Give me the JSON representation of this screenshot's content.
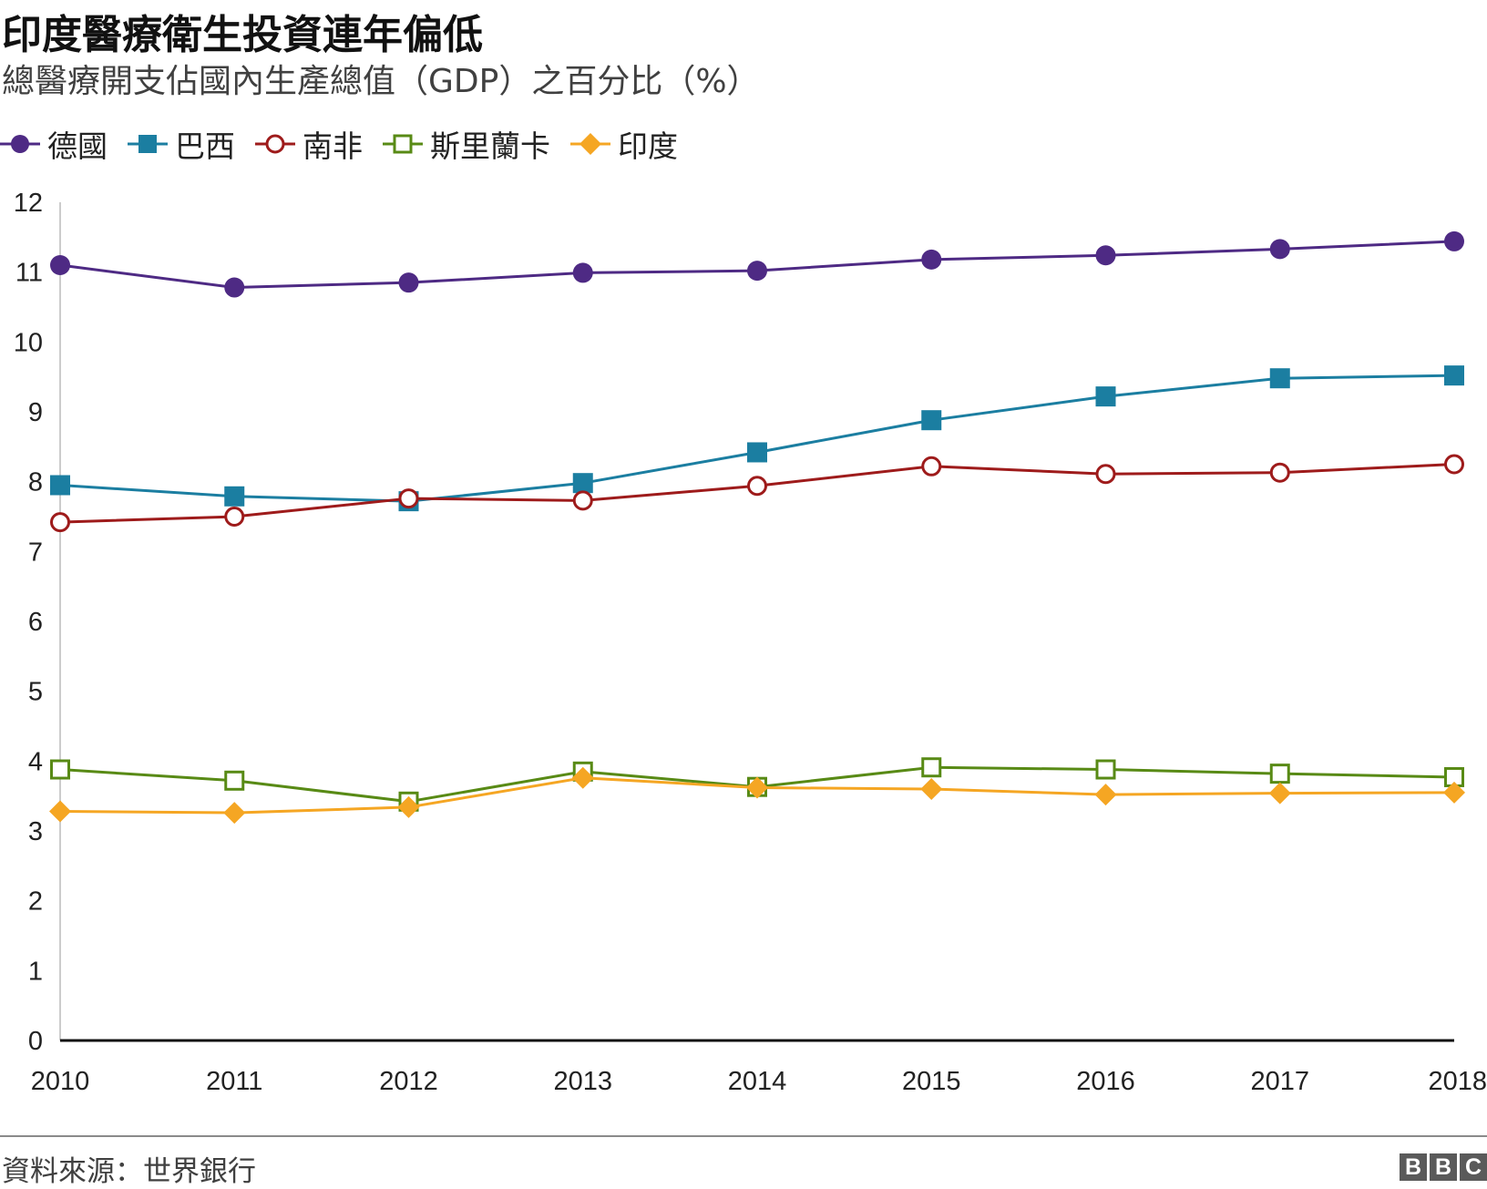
{
  "title": "印度醫療衛生投資連年偏低",
  "subtitle": "總醫療開支佔國內生產總值（GDP）之百分比（%）",
  "source": "資料來源：世界銀行",
  "logo": [
    "B",
    "B",
    "C"
  ],
  "chart_data": {
    "type": "line",
    "x": [
      2010,
      2011,
      2012,
      2013,
      2014,
      2015,
      2016,
      2017,
      2018
    ],
    "ylim": [
      0,
      12
    ],
    "yticks": [
      0,
      1,
      2,
      3,
      4,
      5,
      6,
      7,
      8,
      9,
      10,
      11,
      12
    ],
    "grid": false,
    "legend_position": "top-left",
    "series": [
      {
        "name": "德國",
        "color": "#4e2a84",
        "marker": "circle-filled",
        "values": [
          11.1,
          10.78,
          10.85,
          10.99,
          11.02,
          11.18,
          11.24,
          11.33,
          11.44
        ]
      },
      {
        "name": "巴西",
        "color": "#1b7ea1",
        "marker": "square-filled",
        "values": [
          7.95,
          7.79,
          7.72,
          7.98,
          8.42,
          8.88,
          9.22,
          9.48,
          9.52
        ]
      },
      {
        "name": "南非",
        "color": "#9e1b1b",
        "marker": "circle-open",
        "values": [
          7.42,
          7.5,
          7.76,
          7.73,
          7.94,
          8.22,
          8.11,
          8.13,
          8.25
        ]
      },
      {
        "name": "斯里蘭卡",
        "color": "#588a15",
        "marker": "square-open",
        "values": [
          3.88,
          3.72,
          3.42,
          3.85,
          3.63,
          3.91,
          3.88,
          3.82,
          3.77
        ]
      },
      {
        "name": "印度",
        "color": "#f5a623",
        "marker": "diamond-filled",
        "values": [
          3.28,
          3.26,
          3.34,
          3.76,
          3.62,
          3.6,
          3.52,
          3.54,
          3.55
        ]
      }
    ]
  }
}
